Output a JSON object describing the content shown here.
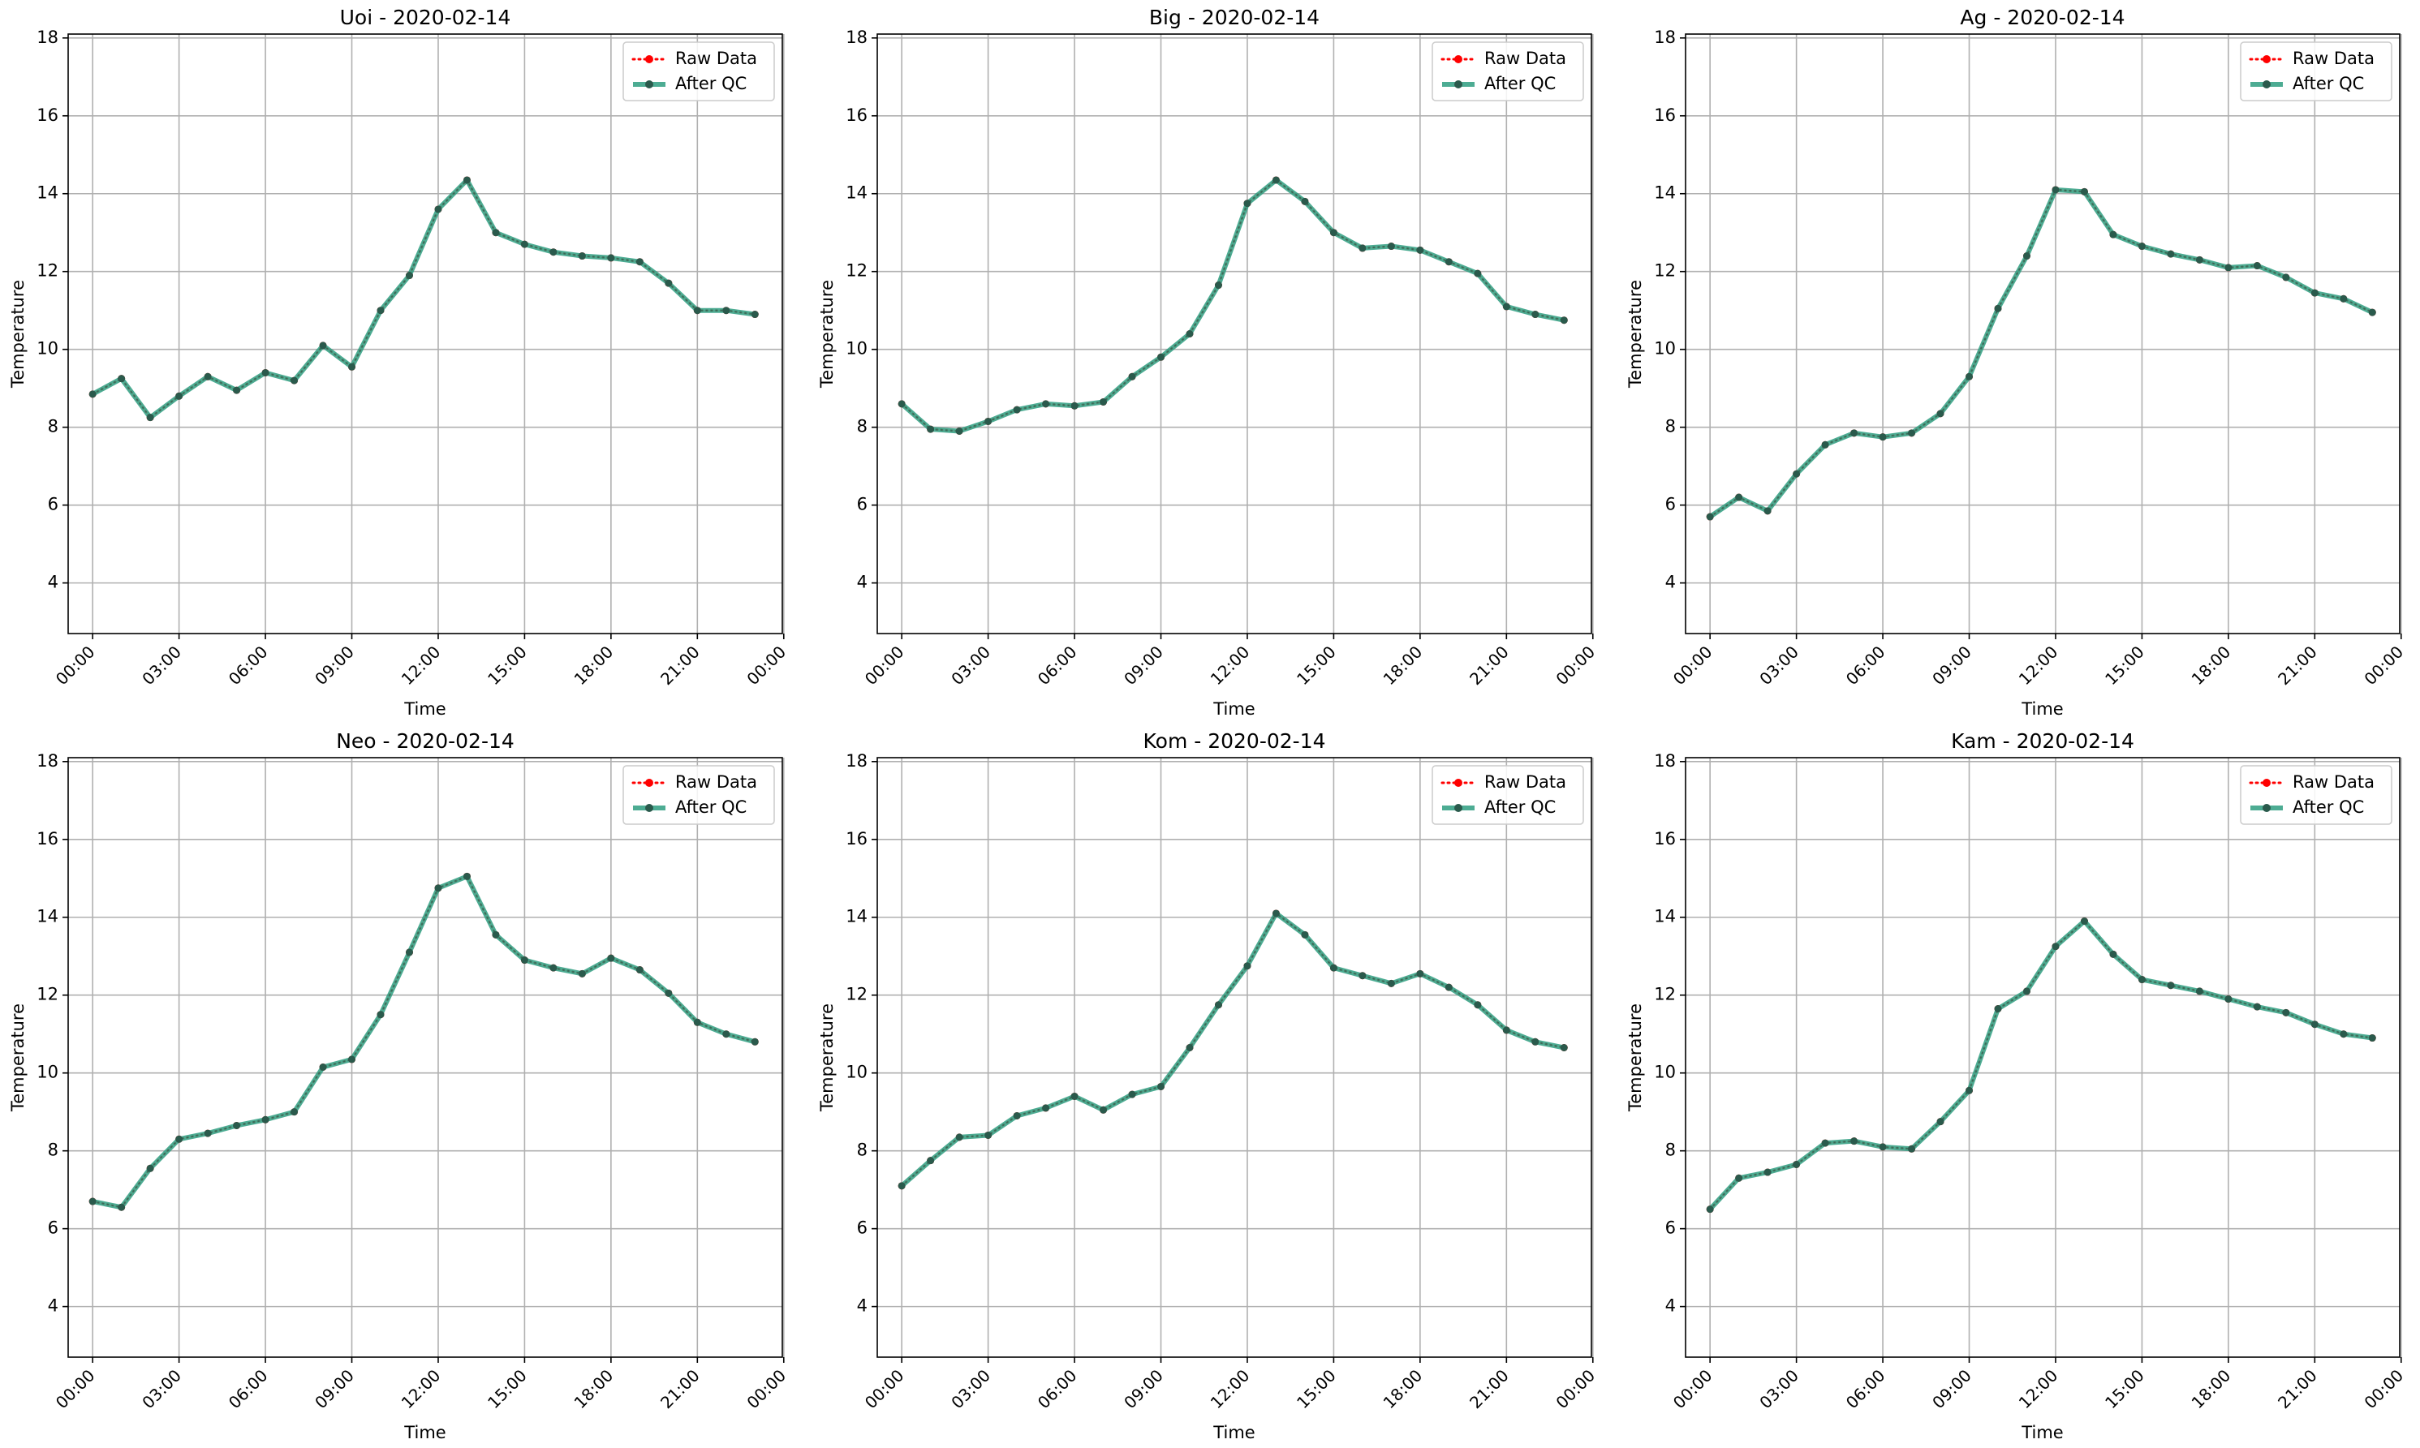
{
  "colors": {
    "raw": "#ff0000",
    "after_qc": "#2e9e80",
    "marker_dark": "#2a5a4c",
    "grid": "#b0b0b0",
    "axes": "#000000"
  },
  "legend": {
    "raw_label": "Raw Data",
    "qc_label": "After QC"
  },
  "chart_data": [
    {
      "type": "line",
      "title": "Uoi - 2020-02-14",
      "xlabel": "Time",
      "ylabel": "Temperature",
      "xlim_hours": [
        -0.85,
        23.95
      ],
      "ylim": [
        2.7,
        18.1
      ],
      "xtick_labels": [
        "00:00",
        "03:00",
        "06:00",
        "09:00",
        "12:00",
        "15:00",
        "18:00",
        "21:00",
        "00:00"
      ],
      "ytick_labels": [
        "4",
        "6",
        "8",
        "10",
        "12",
        "14",
        "16",
        "18"
      ],
      "grid": true,
      "legend_position": "upper right",
      "x": [
        "00:00",
        "01:00",
        "02:00",
        "03:00",
        "04:00",
        "05:00",
        "06:00",
        "07:00",
        "08:00",
        "09:00",
        "10:00",
        "11:00",
        "12:00",
        "13:00",
        "14:00",
        "15:00",
        "16:00",
        "17:00",
        "18:00",
        "19:00",
        "20:00",
        "21:00",
        "22:00",
        "23:00"
      ],
      "series": [
        {
          "name": "Raw Data",
          "values": [
            8.85,
            9.25,
            8.25,
            8.8,
            9.3,
            8.95,
            9.4,
            9.2,
            10.1,
            9.55,
            11.0,
            11.9,
            13.6,
            14.35,
            13.0,
            12.7,
            12.5,
            12.4,
            12.35,
            12.25,
            11.7,
            11.0,
            11.0,
            10.9
          ]
        },
        {
          "name": "After QC",
          "values": [
            8.85,
            9.25,
            8.25,
            8.8,
            9.3,
            8.95,
            9.4,
            9.2,
            10.1,
            9.55,
            11.0,
            11.9,
            13.6,
            14.35,
            13.0,
            12.7,
            12.5,
            12.4,
            12.35,
            12.25,
            11.7,
            11.0,
            11.0,
            10.9
          ]
        }
      ]
    },
    {
      "type": "line",
      "title": "Big - 2020-02-14",
      "xlabel": "Time",
      "ylabel": "Temperature",
      "xlim_hours": [
        -0.85,
        23.95
      ],
      "ylim": [
        2.7,
        18.1
      ],
      "xtick_labels": [
        "00:00",
        "03:00",
        "06:00",
        "09:00",
        "12:00",
        "15:00",
        "18:00",
        "21:00",
        "00:00"
      ],
      "ytick_labels": [
        "4",
        "6",
        "8",
        "10",
        "12",
        "14",
        "16",
        "18"
      ],
      "grid": true,
      "legend_position": "upper right",
      "x": [
        "00:00",
        "01:00",
        "02:00",
        "03:00",
        "04:00",
        "05:00",
        "06:00",
        "07:00",
        "08:00",
        "09:00",
        "10:00",
        "11:00",
        "12:00",
        "13:00",
        "14:00",
        "15:00",
        "16:00",
        "17:00",
        "18:00",
        "19:00",
        "20:00",
        "21:00",
        "22:00",
        "23:00"
      ],
      "series": [
        {
          "name": "Raw Data",
          "values": [
            8.6,
            7.95,
            7.9,
            8.15,
            8.45,
            8.6,
            8.55,
            8.65,
            9.3,
            9.8,
            10.4,
            11.65,
            13.75,
            14.35,
            13.8,
            13.0,
            12.6,
            12.65,
            12.55,
            12.25,
            11.95,
            11.1,
            10.9,
            10.75
          ]
        },
        {
          "name": "After QC",
          "values": [
            8.6,
            7.95,
            7.9,
            8.15,
            8.45,
            8.6,
            8.55,
            8.65,
            9.3,
            9.8,
            10.4,
            11.65,
            13.75,
            14.35,
            13.8,
            13.0,
            12.6,
            12.65,
            12.55,
            12.25,
            11.95,
            11.1,
            10.9,
            10.75
          ]
        }
      ]
    },
    {
      "type": "line",
      "title": "Ag - 2020-02-14",
      "xlabel": "Time",
      "ylabel": "Temperature",
      "xlim_hours": [
        -0.85,
        23.95
      ],
      "ylim": [
        2.7,
        18.1
      ],
      "xtick_labels": [
        "00:00",
        "03:00",
        "06:00",
        "09:00",
        "12:00",
        "15:00",
        "18:00",
        "21:00",
        "00:00"
      ],
      "ytick_labels": [
        "4",
        "6",
        "8",
        "10",
        "12",
        "14",
        "16",
        "18"
      ],
      "grid": true,
      "legend_position": "upper right",
      "x": [
        "00:00",
        "01:00",
        "02:00",
        "03:00",
        "04:00",
        "05:00",
        "06:00",
        "07:00",
        "08:00",
        "09:00",
        "10:00",
        "11:00",
        "12:00",
        "13:00",
        "14:00",
        "15:00",
        "16:00",
        "17:00",
        "18:00",
        "19:00",
        "20:00",
        "21:00",
        "22:00",
        "23:00"
      ],
      "series": [
        {
          "name": "Raw Data",
          "values": [
            5.7,
            6.2,
            5.85,
            6.8,
            7.55,
            7.85,
            7.75,
            7.85,
            8.35,
            9.3,
            11.05,
            12.4,
            14.1,
            14.05,
            12.95,
            12.65,
            12.45,
            12.3,
            12.1,
            12.15,
            11.85,
            11.45,
            11.3,
            10.95
          ]
        },
        {
          "name": "After QC",
          "values": [
            5.7,
            6.2,
            5.85,
            6.8,
            7.55,
            7.85,
            7.75,
            7.85,
            8.35,
            9.3,
            11.05,
            12.4,
            14.1,
            14.05,
            12.95,
            12.65,
            12.45,
            12.3,
            12.1,
            12.15,
            11.85,
            11.45,
            11.3,
            10.95
          ]
        }
      ]
    },
    {
      "type": "line",
      "title": "Neo - 2020-02-14",
      "xlabel": "Time",
      "ylabel": "Temperature",
      "xlim_hours": [
        -0.85,
        23.95
      ],
      "ylim": [
        2.7,
        18.1
      ],
      "xtick_labels": [
        "00:00",
        "03:00",
        "06:00",
        "09:00",
        "12:00",
        "15:00",
        "18:00",
        "21:00",
        "00:00"
      ],
      "ytick_labels": [
        "4",
        "6",
        "8",
        "10",
        "12",
        "14",
        "16",
        "18"
      ],
      "grid": true,
      "legend_position": "upper right",
      "x": [
        "00:00",
        "01:00",
        "02:00",
        "03:00",
        "04:00",
        "05:00",
        "06:00",
        "07:00",
        "08:00",
        "09:00",
        "10:00",
        "11:00",
        "12:00",
        "13:00",
        "14:00",
        "15:00",
        "16:00",
        "17:00",
        "18:00",
        "19:00",
        "20:00",
        "21:00",
        "22:00",
        "23:00"
      ],
      "series": [
        {
          "name": "Raw Data",
          "values": [
            6.7,
            6.55,
            7.55,
            8.3,
            8.45,
            8.65,
            8.8,
            9.0,
            10.15,
            10.35,
            11.5,
            13.1,
            14.75,
            15.05,
            13.55,
            12.9,
            12.7,
            12.55,
            12.95,
            12.65,
            12.05,
            11.3,
            11.0,
            10.8
          ]
        },
        {
          "name": "After QC",
          "values": [
            6.7,
            6.55,
            7.55,
            8.3,
            8.45,
            8.65,
            8.8,
            9.0,
            10.15,
            10.35,
            11.5,
            13.1,
            14.75,
            15.05,
            13.55,
            12.9,
            12.7,
            12.55,
            12.95,
            12.65,
            12.05,
            11.3,
            11.0,
            10.8
          ]
        }
      ]
    },
    {
      "type": "line",
      "title": "Kom - 2020-02-14",
      "xlabel": "Time",
      "ylabel": "Temperature",
      "xlim_hours": [
        -0.85,
        23.95
      ],
      "ylim": [
        2.7,
        18.1
      ],
      "xtick_labels": [
        "00:00",
        "03:00",
        "06:00",
        "09:00",
        "12:00",
        "15:00",
        "18:00",
        "21:00",
        "00:00"
      ],
      "ytick_labels": [
        "4",
        "6",
        "8",
        "10",
        "12",
        "14",
        "16",
        "18"
      ],
      "grid": true,
      "legend_position": "upper right",
      "x": [
        "00:00",
        "01:00",
        "02:00",
        "03:00",
        "04:00",
        "05:00",
        "06:00",
        "07:00",
        "08:00",
        "09:00",
        "10:00",
        "11:00",
        "12:00",
        "13:00",
        "14:00",
        "15:00",
        "16:00",
        "17:00",
        "18:00",
        "19:00",
        "20:00",
        "21:00",
        "22:00",
        "23:00"
      ],
      "series": [
        {
          "name": "Raw Data",
          "values": [
            7.1,
            7.75,
            8.35,
            8.4,
            8.9,
            9.1,
            9.4,
            9.05,
            9.45,
            9.65,
            10.65,
            11.75,
            12.75,
            14.1,
            13.55,
            12.7,
            12.5,
            12.3,
            12.55,
            12.2,
            11.75,
            11.1,
            10.8,
            10.65
          ]
        },
        {
          "name": "After QC",
          "values": [
            7.1,
            7.75,
            8.35,
            8.4,
            8.9,
            9.1,
            9.4,
            9.05,
            9.45,
            9.65,
            10.65,
            11.75,
            12.75,
            14.1,
            13.55,
            12.7,
            12.5,
            12.3,
            12.55,
            12.2,
            11.75,
            11.1,
            10.8,
            10.65
          ]
        }
      ]
    },
    {
      "type": "line",
      "title": "Kam - 2020-02-14",
      "xlabel": "Time",
      "ylabel": "Temperature",
      "xlim_hours": [
        -0.85,
        23.95
      ],
      "ylim": [
        2.7,
        18.1
      ],
      "xtick_labels": [
        "00:00",
        "03:00",
        "06:00",
        "09:00",
        "12:00",
        "15:00",
        "18:00",
        "21:00",
        "00:00"
      ],
      "ytick_labels": [
        "4",
        "6",
        "8",
        "10",
        "12",
        "14",
        "16",
        "18"
      ],
      "grid": true,
      "legend_position": "upper right",
      "x": [
        "00:00",
        "01:00",
        "02:00",
        "03:00",
        "04:00",
        "05:00",
        "06:00",
        "07:00",
        "08:00",
        "09:00",
        "10:00",
        "11:00",
        "12:00",
        "13:00",
        "14:00",
        "15:00",
        "16:00",
        "17:00",
        "18:00",
        "19:00",
        "20:00",
        "21:00",
        "22:00",
        "23:00"
      ],
      "series": [
        {
          "name": "Raw Data",
          "values": [
            6.5,
            7.3,
            7.45,
            7.65,
            8.2,
            8.25,
            8.1,
            8.05,
            8.75,
            9.55,
            11.65,
            12.1,
            13.25,
            13.9,
            13.05,
            12.4,
            12.25,
            12.1,
            11.9,
            11.7,
            11.55,
            11.25,
            11.0,
            10.9
          ]
        },
        {
          "name": "After QC",
          "values": [
            6.5,
            7.3,
            7.45,
            7.65,
            8.2,
            8.25,
            8.1,
            8.05,
            8.75,
            9.55,
            11.65,
            12.1,
            13.25,
            13.9,
            13.05,
            12.4,
            12.25,
            12.1,
            11.9,
            11.7,
            11.55,
            11.25,
            11.0,
            10.9
          ]
        }
      ]
    }
  ]
}
